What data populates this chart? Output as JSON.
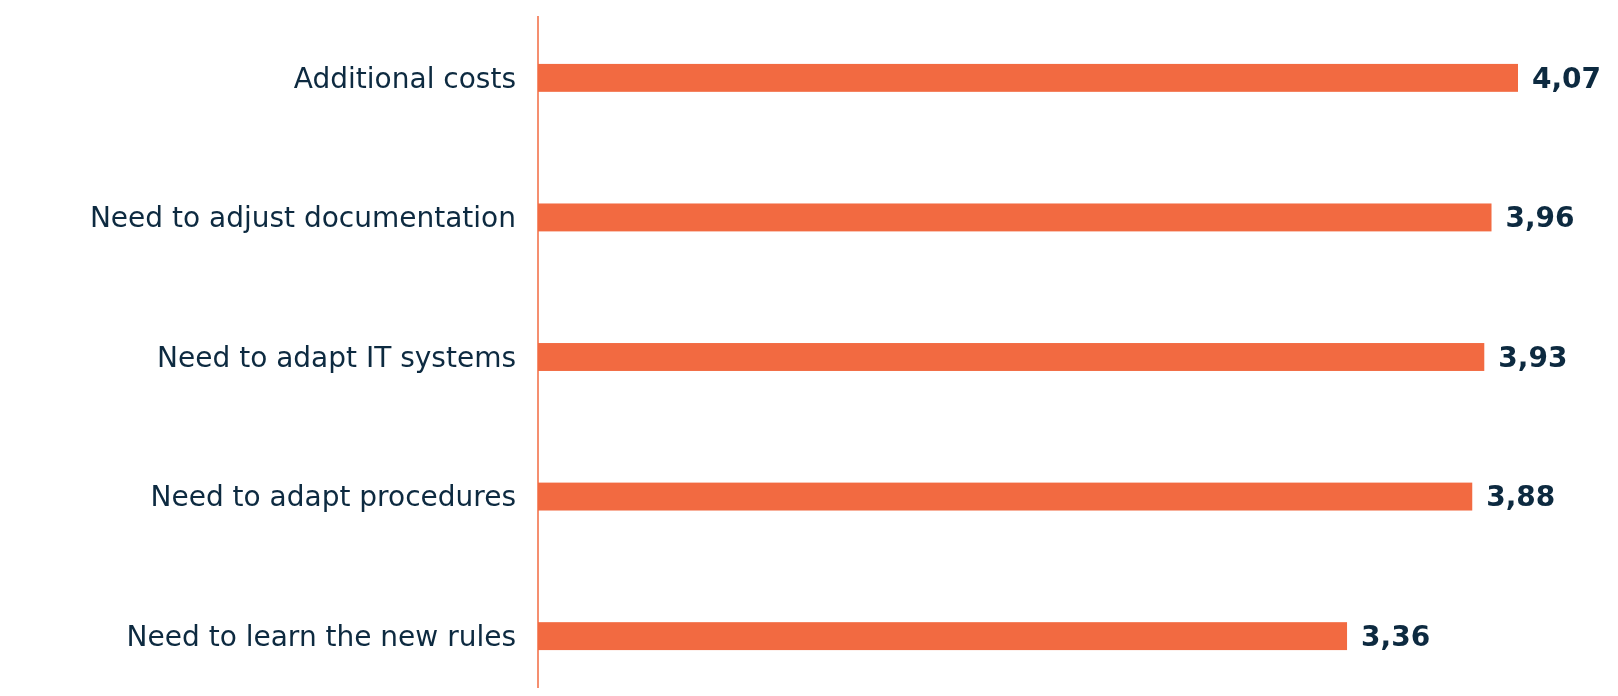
{
  "chart_data": {
    "type": "bar",
    "orientation": "horizontal",
    "categories": [
      "Additional costs",
      "Need to adjust documentation",
      "Need to adapt IT systems",
      "Need to adapt procedures",
      "Need to learn the new rules"
    ],
    "values": [
      4.07,
      3.96,
      3.93,
      3.88,
      3.36
    ],
    "value_labels": [
      "4,07",
      "3,96",
      "3,93",
      "3,88",
      "3,36"
    ],
    "color": "#f26a41"
  }
}
